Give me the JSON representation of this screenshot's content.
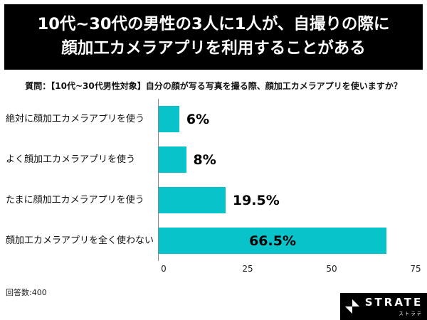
{
  "banner": {
    "line1": "10代~30代の男性の3人に1人が、自撮りの際に",
    "line2": "顔加工カメラアプリを利用することがある"
  },
  "question": "質問：【10代~30代男性対象】自分の顔が写る写真を撮る際、顔加工カメラアプリを使いますか？",
  "chart_data": {
    "type": "bar",
    "orientation": "horizontal",
    "categories": [
      "絶対に顔加工カメラアプリを使う",
      "よく顔加工カメラアプリを使う",
      "たまに顔加工カメラアプリを使う",
      "顔加工カメラアプリを全く使わない"
    ],
    "values": [
      6,
      8,
      19.5,
      66.5
    ],
    "value_labels": [
      "6%",
      "8%",
      "19.5%",
      "66.5%"
    ],
    "xlim": [
      0,
      75
    ],
    "x_ticks": [
      0,
      25,
      50,
      75
    ],
    "bar_color": "#09c3cb",
    "grid": false,
    "legend": "none",
    "note": "回答数:400"
  },
  "footer": {
    "respondents": "回答数:400",
    "brand": {
      "name": "STRATE",
      "subtitle": "ストラテ"
    }
  }
}
